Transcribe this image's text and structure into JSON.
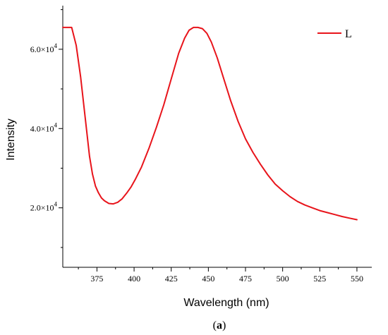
{
  "chart_data": {
    "type": "line",
    "xlabel": "Wavelength (nm)",
    "ylabel": "Intensity",
    "xlim": [
      352,
      560
    ],
    "ylim": [
      5000,
      71000
    ],
    "x_ticks": [
      375,
      400,
      425,
      450,
      475,
      500,
      525,
      550
    ],
    "y_ticks": [
      {
        "value": 20000,
        "label_mantissa": "2.0×10",
        "label_exp": "4"
      },
      {
        "value": 40000,
        "label_mantissa": "4.0×10",
        "label_exp": "4"
      },
      {
        "value": 60000,
        "label_mantissa": "6.0×10",
        "label_exp": "4"
      }
    ],
    "grid": false,
    "legend_position": "top-right",
    "series": [
      {
        "name": "L",
        "color": "#e8141b",
        "x": [
          352,
          358,
          361,
          364,
          367,
          370,
          372,
          374,
          376,
          378,
          380,
          383,
          386,
          389,
          392,
          395,
          398,
          401,
          405,
          410,
          415,
          420,
          425,
          430,
          434,
          437,
          440,
          443,
          446,
          449,
          452,
          456,
          460,
          465,
          470,
          475,
          480,
          485,
          490,
          495,
          500,
          505,
          510,
          515,
          520,
          525,
          530,
          535,
          540,
          545,
          550
        ],
        "y": [
          65500,
          65500,
          61000,
          53000,
          43000,
          33000,
          28500,
          25500,
          23800,
          22500,
          21800,
          21100,
          21000,
          21400,
          22300,
          23700,
          25300,
          27300,
          30300,
          35000,
          40300,
          46000,
          52500,
          59000,
          62800,
          64800,
          65500,
          65500,
          65200,
          64000,
          61800,
          57800,
          53000,
          47000,
          41800,
          37400,
          34000,
          31000,
          28300,
          26000,
          24300,
          22800,
          21600,
          20700,
          20000,
          19300,
          18800,
          18300,
          17800,
          17400,
          17000
        ]
      }
    ]
  },
  "caption": {
    "open": "(",
    "letter": "a",
    "close": ")"
  }
}
